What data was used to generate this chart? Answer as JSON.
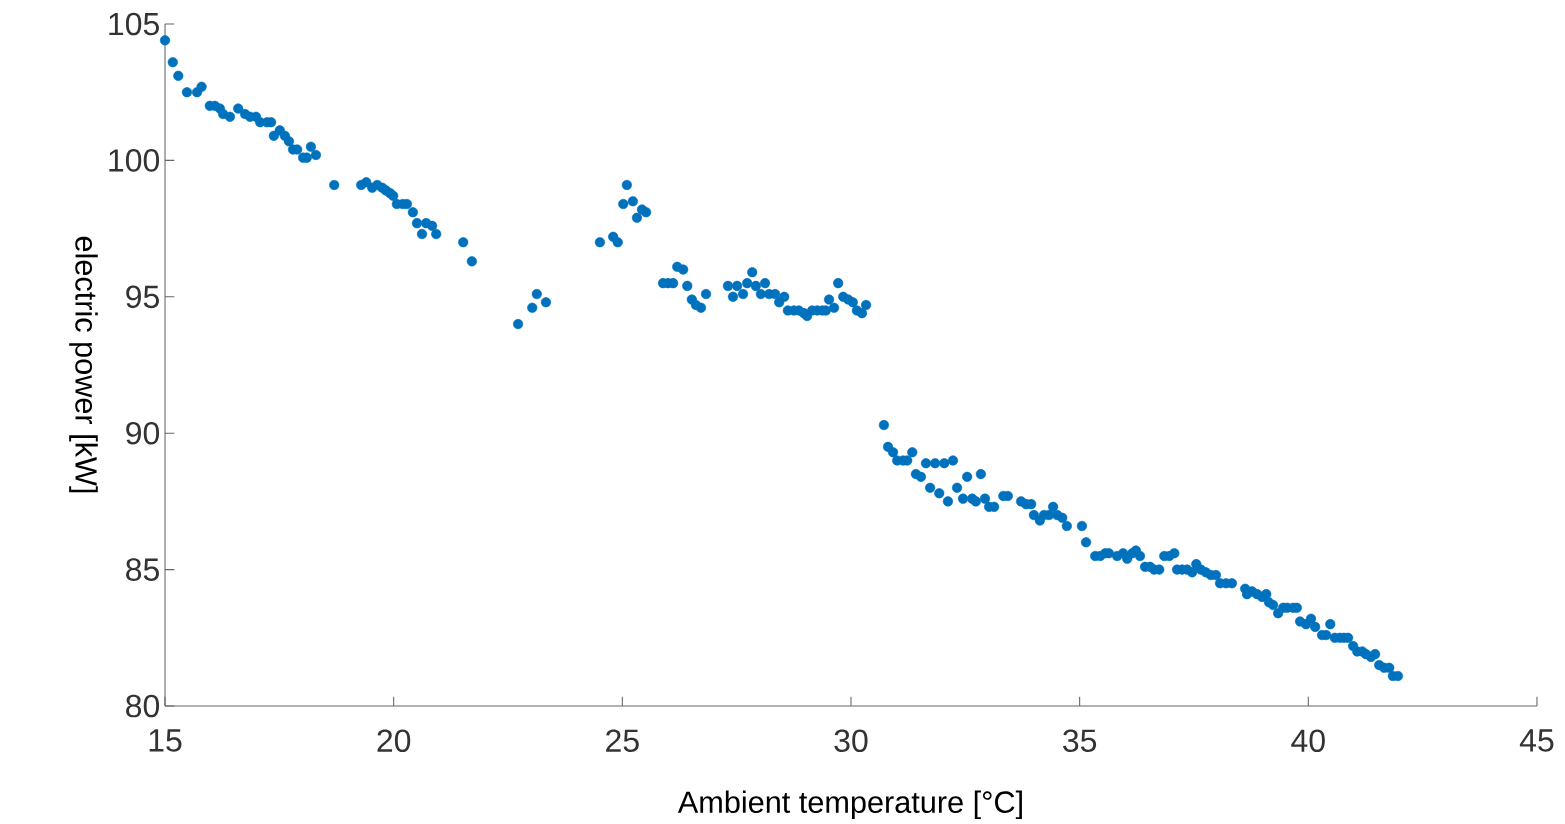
{
  "chart_data": {
    "type": "scatter",
    "xlabel": "Ambient temperature [°C]",
    "ylabel": "electric power [kW]",
    "color": "#0072bd",
    "marker": "circle",
    "xlim": [
      15,
      45
    ],
    "ylim": [
      80,
      105
    ],
    "xticks": [
      15,
      20,
      25,
      30,
      35,
      40,
      45
    ],
    "yticks": [
      80,
      85,
      90,
      95,
      100,
      105
    ],
    "x": [
      15.0,
      15.17,
      15.29,
      15.48,
      15.7,
      15.8,
      15.98,
      16.09,
      16.2,
      16.27,
      16.42,
      16.6,
      16.75,
      16.86,
      16.99,
      17.08,
      17.23,
      17.32,
      17.38,
      17.51,
      17.62,
      17.71,
      17.8,
      17.89,
      18.02,
      18.1,
      18.19,
      18.3,
      18.7,
      19.29,
      19.4,
      19.53,
      19.64,
      19.75,
      19.83,
      19.92,
      19.99,
      20.07,
      20.2,
      20.29,
      20.42,
      20.51,
      20.62,
      20.71,
      20.84,
      20.93,
      21.52,
      21.71,
      22.72,
      23.03,
      23.13,
      23.33,
      24.51,
      24.8,
      24.9,
      25.02,
      25.1,
      25.23,
      25.32,
      25.43,
      25.52,
      25.89,
      26.0,
      26.11,
      26.2,
      26.33,
      26.42,
      26.52,
      26.61,
      26.72,
      26.83,
      27.31,
      27.42,
      27.51,
      27.64,
      27.73,
      27.84,
      27.92,
      28.03,
      28.12,
      28.21,
      28.34,
      28.43,
      28.54,
      28.62,
      28.75,
      28.86,
      28.97,
      29.04,
      29.15,
      29.26,
      29.37,
      29.45,
      29.52,
      29.63,
      29.72,
      29.83,
      29.94,
      30.04,
      30.13,
      30.24,
      30.33,
      30.72,
      30.81,
      30.92,
      31.01,
      31.14,
      31.23,
      31.34,
      31.42,
      31.53,
      31.64,
      31.73,
      31.84,
      31.93,
      32.04,
      32.12,
      32.23,
      32.32,
      32.45,
      32.54,
      32.65,
      32.73,
      32.84,
      32.93,
      33.02,
      33.13,
      33.33,
      33.43,
      33.72,
      33.83,
      33.94,
      34.0,
      34.13,
      34.22,
      34.33,
      34.42,
      34.51,
      34.62,
      34.72,
      35.05,
      35.14,
      35.34,
      35.45,
      35.56,
      35.64,
      35.82,
      35.95,
      36.04,
      36.15,
      36.23,
      36.32,
      36.43,
      36.54,
      36.63,
      36.74,
      36.85,
      36.96,
      37.07,
      37.13,
      37.24,
      37.35,
      37.46,
      37.55,
      37.65,
      37.76,
      37.87,
      37.98,
      38.07,
      38.2,
      38.33,
      38.62,
      38.66,
      38.77,
      38.88,
      38.99,
      39.08,
      39.14,
      39.23,
      39.34,
      39.45,
      39.54,
      39.67,
      39.75,
      39.82,
      39.95,
      40.06,
      40.15,
      40.3,
      40.39,
      40.48,
      40.58,
      40.69,
      40.78,
      40.87,
      40.98,
      41.07,
      41.18,
      41.26,
      41.37,
      41.46,
      41.55,
      41.66,
      41.77,
      41.85,
      41.96
    ],
    "values": [
      104.4,
      103.6,
      103.1,
      102.5,
      102.5,
      102.7,
      102.0,
      102.0,
      101.9,
      101.7,
      101.6,
      101.9,
      101.7,
      101.6,
      101.6,
      101.4,
      101.4,
      101.4,
      100.9,
      101.1,
      100.9,
      100.7,
      100.4,
      100.4,
      100.1,
      100.1,
      100.5,
      100.2,
      99.1,
      99.1,
      99.2,
      99.0,
      99.1,
      99.0,
      98.9,
      98.8,
      98.7,
      98.4,
      98.4,
      98.4,
      98.1,
      97.7,
      97.3,
      97.7,
      97.6,
      97.3,
      97.0,
      96.3,
      94.0,
      94.6,
      95.1,
      94.8,
      97.0,
      97.2,
      97.0,
      98.4,
      99.1,
      98.5,
      97.9,
      98.2,
      98.1,
      95.5,
      95.5,
      95.5,
      96.1,
      96.0,
      95.4,
      94.9,
      94.7,
      94.6,
      95.1,
      95.4,
      95.0,
      95.4,
      95.1,
      95.5,
      95.9,
      95.4,
      95.1,
      95.5,
      95.1,
      95.1,
      94.8,
      95.0,
      94.5,
      94.5,
      94.5,
      94.4,
      94.3,
      94.5,
      94.5,
      94.5,
      94.5,
      94.9,
      94.6,
      95.5,
      95.0,
      94.9,
      94.8,
      94.5,
      94.4,
      94.7,
      90.3,
      89.5,
      89.3,
      89.0,
      89.0,
      89.0,
      89.3,
      88.5,
      88.4,
      88.9,
      88.0,
      88.9,
      87.8,
      88.9,
      87.5,
      89.0,
      88.0,
      87.6,
      88.4,
      87.6,
      87.5,
      88.5,
      87.6,
      87.3,
      87.3,
      87.7,
      87.7,
      87.5,
      87.4,
      87.4,
      87.0,
      86.8,
      87.0,
      87.0,
      87.3,
      87.0,
      86.9,
      86.6,
      86.6,
      86.0,
      85.5,
      85.5,
      85.6,
      85.6,
      85.5,
      85.6,
      85.4,
      85.6,
      85.7,
      85.5,
      85.1,
      85.1,
      85.0,
      85.0,
      85.5,
      85.5,
      85.6,
      85.0,
      85.0,
      85.0,
      84.9,
      85.2,
      85.0,
      84.9,
      84.8,
      84.8,
      84.5,
      84.5,
      84.5,
      84.3,
      84.1,
      84.2,
      84.1,
      84.0,
      84.1,
      83.8,
      83.7,
      83.4,
      83.6,
      83.6,
      83.6,
      83.6,
      83.1,
      83.0,
      83.2,
      82.9,
      82.6,
      82.6,
      83.0,
      82.5,
      82.5,
      82.5,
      82.5,
      82.2,
      82.0,
      82.0,
      81.9,
      81.8,
      81.9,
      81.5,
      81.4,
      81.4,
      81.1,
      81.1
    ]
  }
}
